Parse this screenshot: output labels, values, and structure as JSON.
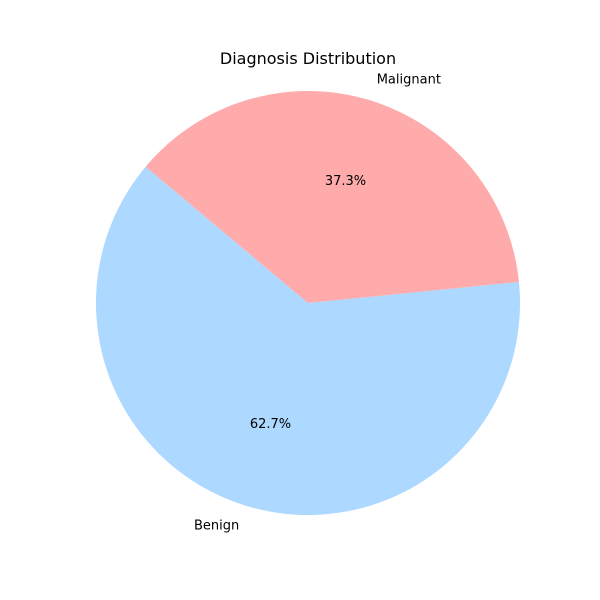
{
  "chart_data": {
    "type": "pie",
    "title": "Diagnosis Distribution",
    "slices": [
      {
        "label": "Benign",
        "value": 62.7,
        "pct_label": "62.7%",
        "color": "#add8ff"
      },
      {
        "label": "Malignant",
        "value": 37.3,
        "pct_label": "37.3%",
        "color": "#ffabab"
      }
    ],
    "start_angle_deg": 140,
    "direction": "counterclockwise",
    "legend": "none"
  }
}
